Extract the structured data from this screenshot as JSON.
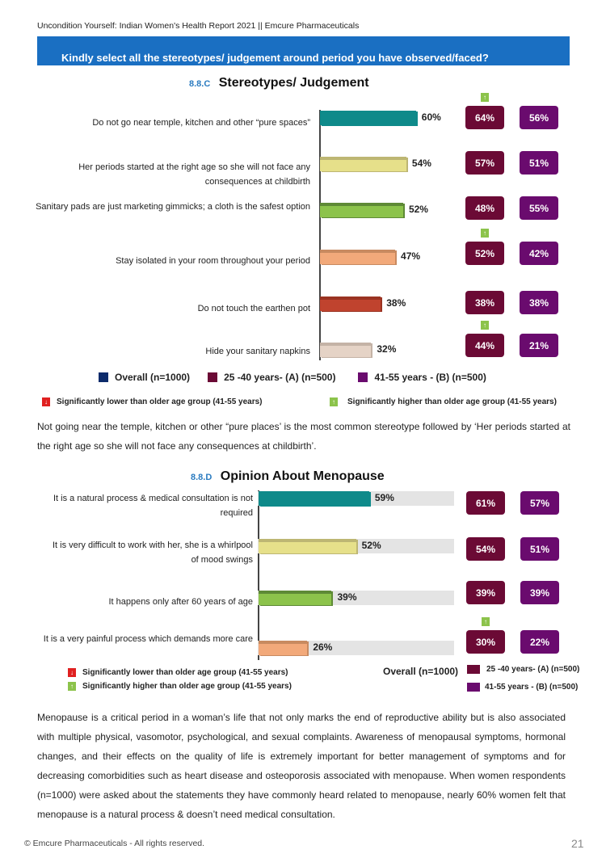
{
  "header": {
    "report_title": "Uncondition Yourself: Indian Women's Health Report 2021 || Emcure Pharmaceuticals",
    "banner_question": "Kindly select all the stereotypes/ judgement around period you have observed/faced?"
  },
  "colors": {
    "banner": "#1a6fc2",
    "overall": "#0d2b6b",
    "group_a": "#6b0a35",
    "group_b": "#6a0b6e",
    "sig_higher": "#8cc34b",
    "sig_lower": "#e02020"
  },
  "chart_data": [
    {
      "type": "bar",
      "section_number": "8.8.C",
      "title": "Stereotypes/ Judgement",
      "orientation": "horizontal",
      "categories": [
        "Do not go near temple, kitchen and other “pure spaces”",
        "Her periods started at the right age so she will not face any consequences at childbirth",
        "Sanitary pads are just marketing gimmicks; a cloth is the safest option",
        "Stay isolated in your room throughout your period",
        "Do not touch the earthen pot",
        "Hide your sanitary napkins"
      ],
      "series": [
        {
          "name": "Overall (n=1000)",
          "values": [
            60,
            54,
            52,
            47,
            38,
            32
          ],
          "labels": [
            "60%",
            "54%",
            "52%",
            "47%",
            "38%",
            "32%"
          ]
        },
        {
          "name": "25 -40 years- (A) (n=500)",
          "values": [
            64,
            57,
            48,
            52,
            38,
            44
          ],
          "labels": [
            "64%",
            "57%",
            "48%",
            "52%",
            "38%",
            "44%"
          ]
        },
        {
          "name": "41-55 years - (B) (n=500)",
          "values": [
            56,
            51,
            55,
            42,
            38,
            21
          ],
          "labels": [
            "56%",
            "51%",
            "55%",
            "42%",
            "38%",
            "21%"
          ]
        }
      ],
      "bar_colors": [
        "#0e8a8a",
        "#e6e08a",
        "#8cc34b",
        "#f2a97a",
        "#c0432e",
        "#e5d3c6"
      ],
      "bar_top_colors": [
        "#0e8a8a",
        "#bdb673",
        "#5e8a36",
        "#c88a60",
        "#9a3322",
        "#c4b3a6"
      ],
      "significance_a": [
        "higher",
        null,
        null,
        "higher",
        null,
        "higher"
      ],
      "xlim": [
        0,
        100
      ],
      "legend": [
        {
          "label": "Overall (n=1000)",
          "color": "#0d2b6b"
        },
        {
          "label": "25 -40 years- (A) (n=500)",
          "color": "#6b0a35"
        },
        {
          "label": "41-55 years - (B) (n=500)",
          "color": "#6a0b6e"
        }
      ],
      "notes": {
        "lower": "Significantly lower than older age group (41-55 years)",
        "higher": "Significantly higher than older age group (41-55 years)"
      }
    },
    {
      "type": "bar",
      "section_number": "8.8.D",
      "title": "Opinion About Menopause",
      "orientation": "horizontal",
      "categories": [
        "It is a natural process & medical consultation is not required",
        "It is very difficult to work with her, she is a whirlpool of mood swings",
        "It happens only after 60 years of age",
        "It is a very painful process which demands more care"
      ],
      "series": [
        {
          "name": "Overall (n=1000)",
          "values": [
            59,
            52,
            39,
            26
          ],
          "labels": [
            "59%",
            "52%",
            "39%",
            "26%"
          ]
        },
        {
          "name": "25 -40 years- (A) (n=500)",
          "values": [
            61,
            54,
            39,
            30
          ],
          "labels": [
            "61%",
            "54%",
            "39%",
            "30%"
          ]
        },
        {
          "name": "41-55 years - (B) (n=500)",
          "values": [
            57,
            51,
            39,
            22
          ],
          "labels": [
            "57%",
            "51%",
            "39%",
            "22%"
          ]
        }
      ],
      "bar_colors": [
        "#0e8a8a",
        "#e6e08a",
        "#8cc34b",
        "#f2a97a"
      ],
      "bar_top_colors": [
        "#0e8a8a",
        "#bdb673",
        "#5e8a36",
        "#c88a60"
      ],
      "significance_a": [
        null,
        null,
        null,
        "higher"
      ],
      "xlim": [
        0,
        100
      ],
      "legend": [
        {
          "label": "Overall (n=1000)",
          "color": null
        },
        {
          "label": "25 -40 years- (A) (n=500)",
          "color": "#6b0a35"
        },
        {
          "label": "41-55 years - (B) (n=500)",
          "color": "#6a0b6e"
        }
      ],
      "notes": {
        "lower": "Significantly lower than older age group (41-55 years)",
        "higher": "Significantly higher than older age group (41-55 years)"
      }
    }
  ],
  "text": {
    "para1": "Not going near the temple, kitchen or other “pure places’ is the most common stereotype followed by ‘Her periods started at the right age so she will not face any consequences at childbirth’.",
    "para2": "Menopause is a critical period in a woman’s life that not only marks the end of reproductive ability but is also associated with multiple physical, vasomotor, psychological, and sexual complaints. Awareness of menopausal symptoms, hormonal changes, and their effects on the quality of life is extremely important for better management of symptoms and for decreasing comorbidities such as heart disease and osteoporosis associated with menopause. When women respondents (n=1000) were asked about the statements they have commonly heard related to menopause, nearly 60% women felt that menopause is a natural process & doesn’t need medical consultation."
  },
  "icons": {
    "up": "↑",
    "down": "↓"
  },
  "footer": {
    "copyright": "© Emcure Pharmaceuticals - All rights reserved.",
    "page_number": "21"
  }
}
